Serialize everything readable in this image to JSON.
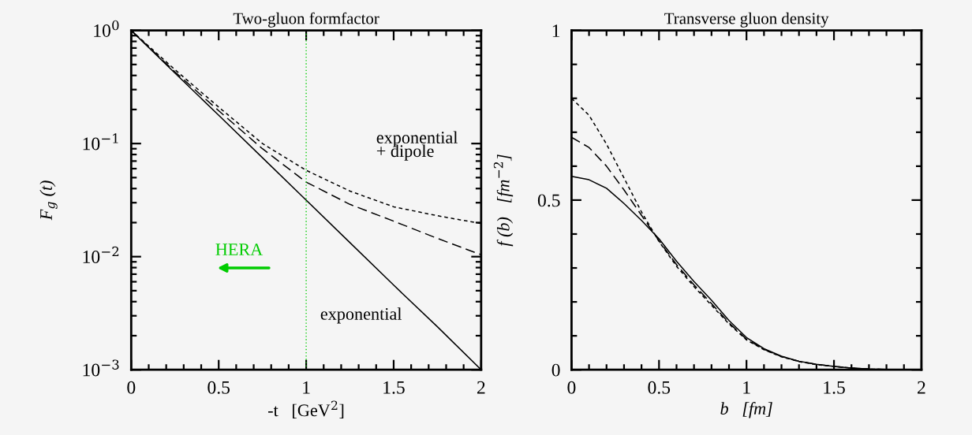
{
  "chart_data": [
    {
      "type": "line",
      "title": "Two-gluon formfactor",
      "xlabel": "-t   [GeV$^{2}$]",
      "ylabel": "F$_{g}$ (t)",
      "log": "y",
      "x": [
        0,
        0.25,
        0.5,
        0.75,
        1,
        1.25,
        1.5,
        1.75,
        2
      ],
      "series": [
        {
          "color": "#000000",
          "line_style": "solid",
          "values": [
            1,
            0.42,
            0.178,
            0.075,
            0.0316,
            0.0133,
            0.0056,
            0.0024,
            0.001
          ]
        },
        {
          "color": "#000000",
          "line_style": "dashed",
          "values": [
            1,
            0.43,
            0.195,
            0.09,
            0.0456,
            0.029,
            0.0206,
            0.0145,
            0.0104
          ]
        },
        {
          "color": "#000000",
          "line_style": "dotted",
          "values": [
            1,
            0.45,
            0.21,
            0.1,
            0.058,
            0.038,
            0.0276,
            0.023,
            0.0196
          ]
        }
      ],
      "xlim": [
        0,
        2
      ],
      "xticks": [
        0,
        0.5,
        1,
        1.5,
        2
      ],
      "ylim": [
        0.001,
        1
      ],
      "yticks": [
        {
          "value": 0.001,
          "label": "10$^{−3}$"
        },
        {
          "value": 0.01,
          "label": "10$^{−2}$"
        },
        {
          "value": 0.1,
          "label": "10$^{−1}$"
        },
        {
          "value": 1,
          "label": "10$^{0}$"
        }
      ],
      "ref_lines": [
        {
          "axis": "x",
          "value": 1,
          "color": "#00cc00",
          "line_style": "dotted"
        }
      ],
      "annotations": [
        "exponential\n+ dipole",
        "exponential",
        "HERA"
      ],
      "grid": false,
      "legend": false
    },
    {
      "type": "line",
      "title": "Transverse gluon density",
      "xlabel": "b   [fm]",
      "ylabel": "f (b)   [fm$^{−2}$]",
      "x": [
        0,
        0.1,
        0.2,
        0.3,
        0.4,
        0.5,
        0.6,
        0.7,
        0.8,
        0.9,
        1.0,
        1.1,
        1.2,
        1.3,
        1.4,
        1.5,
        1.6,
        1.7,
        1.8,
        2.0
      ],
      "series": [
        {
          "color": "#000000",
          "line_style": "solid",
          "values": [
            0.57,
            0.56,
            0.535,
            0.49,
            0.44,
            0.386,
            0.32,
            0.26,
            0.205,
            0.145,
            0.095,
            0.062,
            0.04,
            0.025,
            0.016,
            0.01,
            0.005,
            0.002,
            0.001,
            0
          ]
        },
        {
          "color": "#000000",
          "line_style": "dashed",
          "values": [
            0.685,
            0.655,
            0.6,
            0.53,
            0.455,
            0.38,
            0.31,
            0.25,
            0.195,
            0.138,
            0.09,
            0.06,
            0.039,
            0.025,
            0.016,
            0.01,
            0.005,
            0.002,
            0.001,
            0
          ]
        },
        {
          "color": "#000000",
          "line_style": "dotted",
          "values": [
            0.8,
            0.75,
            0.665,
            0.565,
            0.465,
            0.378,
            0.305,
            0.245,
            0.19,
            0.135,
            0.088,
            0.059,
            0.038,
            0.024,
            0.015,
            0.01,
            0.005,
            0.002,
            0.001,
            0
          ]
        }
      ],
      "xlim": [
        0,
        2
      ],
      "xticks": [
        0,
        0.5,
        1,
        1.5,
        2
      ],
      "ylim": [
        0,
        1
      ],
      "yticks": [
        0,
        0.5,
        1
      ],
      "grid": false,
      "legend": false
    }
  ]
}
